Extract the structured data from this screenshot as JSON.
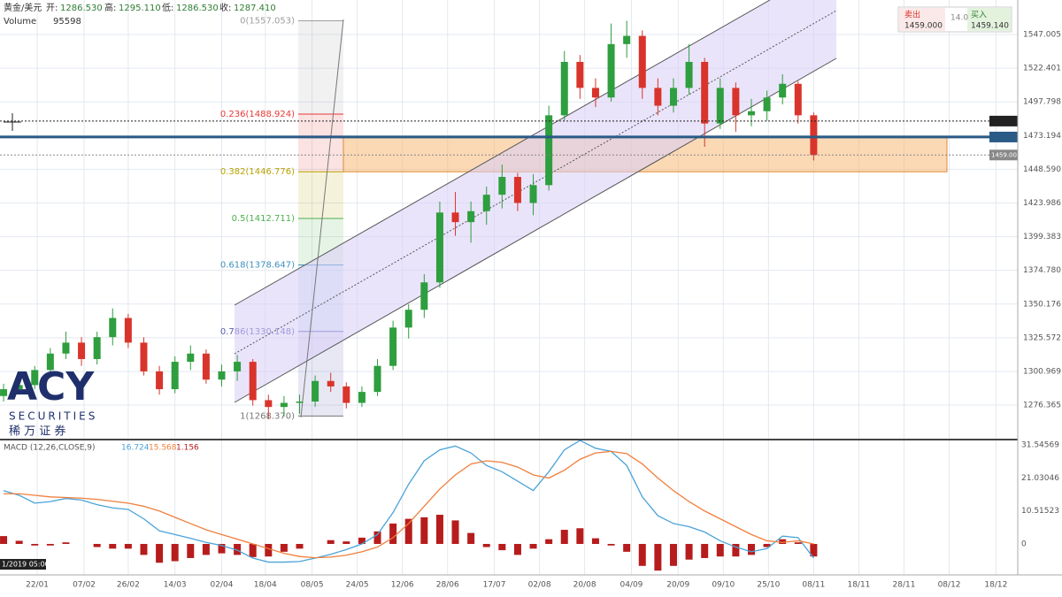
{
  "header": {
    "symbol": "黄金/美元",
    "open_label": "开:",
    "open": "1286.530",
    "high_label": "高:",
    "high": "1295.110",
    "low_label": "低:",
    "low": "1286.530",
    "close_label": "收:",
    "close": "1287.410",
    "volume_label": "Volume",
    "volume": "95598",
    "sell_label": "卖出",
    "sell": "1459.000",
    "spread": "14.0",
    "buy_label": "买入",
    "buy": "1459.140",
    "timestamp": "1/2019  05:00",
    "logo": "ACY",
    "logo_sub": "SECURITIES",
    "logo_cn": "稀 万 证 券"
  },
  "chart_data": [
    {
      "type": "candlestick",
      "up_color": "#2e9e3e",
      "down_color": "#d9342b",
      "x": [
        0,
        1,
        2,
        3,
        4,
        5,
        6,
        7,
        8,
        9,
        10,
        11,
        12,
        13,
        14,
        15,
        16,
        17,
        18,
        19,
        20,
        21,
        22,
        23,
        24,
        25,
        26,
        27,
        28,
        29,
        30,
        31,
        32,
        33,
        34,
        35,
        36,
        37,
        38,
        39,
        40,
        41,
        42,
        43,
        44,
        45,
        46,
        47,
        48,
        49,
        50,
        51,
        52
      ],
      "open": [
        1283,
        1288,
        1291,
        1302,
        1314,
        1322,
        1310,
        1326,
        1340,
        1322,
        1301,
        1288,
        1308,
        1314,
        1295,
        1301,
        1308,
        1280,
        1275,
        1278,
        1279,
        1294,
        1290,
        1278,
        1286,
        1305,
        1333,
        1346,
        1366,
        1417,
        1410,
        1418,
        1430,
        1443,
        1424,
        1437,
        1488,
        1527,
        1508,
        1501,
        1540,
        1546,
        1508,
        1495,
        1508,
        1527,
        1482,
        1508,
        1488,
        1491,
        1501,
        1511,
        1488
      ],
      "high": [
        1292,
        1296,
        1305,
        1318,
        1330,
        1326,
        1330,
        1347,
        1343,
        1326,
        1305,
        1312,
        1320,
        1317,
        1306,
        1313,
        1310,
        1284,
        1283,
        1284,
        1298,
        1300,
        1293,
        1290,
        1310,
        1338,
        1350,
        1372,
        1425,
        1432,
        1425,
        1436,
        1452,
        1446,
        1445,
        1495,
        1535,
        1532,
        1515,
        1555,
        1557,
        1550,
        1515,
        1515,
        1540,
        1530,
        1515,
        1512,
        1500,
        1506,
        1518,
        1513,
        1490
      ],
      "low": [
        1279,
        1284,
        1288,
        1298,
        1310,
        1305,
        1306,
        1320,
        1318,
        1298,
        1284,
        1285,
        1302,
        1292,
        1290,
        1294,
        1276,
        1266,
        1268,
        1270,
        1275,
        1286,
        1274,
        1275,
        1283,
        1302,
        1325,
        1340,
        1362,
        1400,
        1395,
        1408,
        1420,
        1418,
        1415,
        1433,
        1484,
        1500,
        1494,
        1498,
        1530,
        1500,
        1488,
        1490,
        1503,
        1465,
        1478,
        1476,
        1480,
        1484,
        1496,
        1482,
        1455
      ],
      "close": [
        1288,
        1291,
        1302,
        1314,
        1322,
        1310,
        1326,
        1340,
        1322,
        1301,
        1288,
        1308,
        1314,
        1295,
        1301,
        1308,
        1280,
        1275,
        1278,
        1279,
        1294,
        1290,
        1278,
        1286,
        1305,
        1333,
        1346,
        1366,
        1417,
        1410,
        1418,
        1430,
        1443,
        1424,
        1437,
        1488,
        1527,
        1508,
        1501,
        1540,
        1546,
        1508,
        1495,
        1508,
        1527,
        1482,
        1508,
        1488,
        1491,
        1501,
        1511,
        1488,
        1459
      ],
      "xlim": [
        -0.23,
        65.1
      ],
      "xticks": [
        {
          "value": 2.16,
          "label": "22/01"
        },
        {
          "value": 5.17,
          "label": "07/02"
        },
        {
          "value": 8.0,
          "label": "26/02"
        },
        {
          "value": 11.0,
          "label": "14/03"
        },
        {
          "value": 14.0,
          "label": "02/04"
        },
        {
          "value": 16.8,
          "label": "18/04"
        },
        {
          "value": 19.8,
          "label": "08/05"
        },
        {
          "value": 22.7,
          "label": "24/05"
        },
        {
          "value": 25.6,
          "label": "12/06"
        },
        {
          "value": 28.5,
          "label": "28/06"
        },
        {
          "value": 31.5,
          "label": "17/07"
        },
        {
          "value": 34.4,
          "label": "02/08"
        },
        {
          "value": 37.3,
          "label": "20/08"
        },
        {
          "value": 40.3,
          "label": "04/09"
        },
        {
          "value": 43.3,
          "label": "20/09"
        },
        {
          "value": 46.2,
          "label": "09/10"
        },
        {
          "value": 49.1,
          "label": "25/10"
        },
        {
          "value": 52.0,
          "label": "08/11"
        },
        {
          "value": 54.9,
          "label": "18/11"
        },
        {
          "value": 57.8,
          "label": "28/11"
        },
        {
          "value": 60.7,
          "label": "08/12"
        },
        {
          "value": 63.7,
          "label": "18/12"
        }
      ],
      "ylim": [
        1252.5,
        1572.2
      ],
      "yticks": [
        1547.005,
        1522.401,
        1497.798,
        1473.194,
        {
          "value": 1448.59,
          "label": "1448.590"
        },
        1423.986,
        1399.383,
        {
          "value": 1374.78,
          "label": "1374.780"
        },
        1350.176,
        1325.572,
        1300.969,
        1276.365
      ],
      "grid": true,
      "fib": [
        {
          "label": "0(1557.053)",
          "value": 1557.053,
          "color": "#9e9e9e"
        },
        {
          "label": "0.236(1488.924)",
          "value": 1488.924,
          "color": "#e53935"
        },
        {
          "label": "0.382(1446.776)",
          "value": 1446.776,
          "color": "#b8a300"
        },
        {
          "label": "0.5(1412.711)",
          "value": 1412.711,
          "color": "#4caf50"
        },
        {
          "label": "0.618(1378.647)",
          "value": 1378.647,
          "color": "#3f8fbf"
        },
        {
          "label": "0.786(1330.148)",
          "value": 1330.148,
          "color": "#5b5bb5"
        },
        {
          "label": "1(1268.370)",
          "value": 1268.37,
          "color": "#757575"
        }
      ],
      "price_markers": [
        {
          "value": 1483.791,
          "color": "#222"
        },
        {
          "value": 1472.146,
          "color": "#2a5a86"
        },
        {
          "value": 1459,
          "label": "1459.000",
          "color": "#888"
        }
      ]
    },
    {
      "type": "macd",
      "title": "MACD (12,26,CLOSE,9)",
      "readouts": [
        16.724,
        15.568,
        1.156
      ],
      "hist_color": "#b71c1c",
      "x": [
        0,
        1,
        2,
        3,
        4,
        5,
        6,
        7,
        8,
        9,
        10,
        11,
        12,
        13,
        14,
        15,
        16,
        17,
        18,
        19,
        20,
        21,
        22,
        23,
        24,
        25,
        26,
        27,
        28,
        29,
        30,
        31,
        32,
        33,
        34,
        35,
        36,
        37,
        38,
        39,
        40,
        41,
        42,
        43,
        44,
        45,
        46,
        47,
        48,
        49,
        50,
        51,
        52
      ],
      "series": [
        {
          "name": "MACD",
          "color": "#4aa3d8",
          "values": [
            17,
            15.5,
            13,
            13.5,
            14.5,
            14,
            12.5,
            11.5,
            11,
            8,
            4.2,
            3,
            1.8,
            0.5,
            -0.5,
            -2,
            -4.5,
            -5.8,
            -5.8,
            -5.6,
            -4.5,
            -3.3,
            -1.8,
            0,
            3,
            10,
            19,
            26.5,
            30,
            31.2,
            29,
            25,
            23,
            20,
            17,
            23,
            30,
            33,
            30.5,
            29.5,
            25,
            15,
            9,
            6.5,
            5.5,
            3.8,
            1,
            -1,
            -2.5,
            -1.5,
            2.5,
            2,
            -4.5
          ]
        },
        {
          "name": "Signal",
          "color": "#f07f3c",
          "values": [
            16,
            16,
            15.5,
            15,
            14.8,
            14.6,
            14.2,
            13.6,
            13,
            12,
            10.5,
            8.5,
            6.5,
            4.5,
            3,
            1.5,
            0,
            -1.5,
            -3,
            -4,
            -4.4,
            -4.2,
            -3.6,
            -2.5,
            -1,
            2,
            6.5,
            12,
            17.5,
            22,
            25.5,
            26.5,
            26,
            24.5,
            22,
            21,
            23.5,
            27,
            29,
            29.5,
            28.8,
            25.5,
            21,
            17,
            13.5,
            10.5,
            8,
            5.5,
            3,
            1,
            0.5,
            1,
            0
          ]
        }
      ],
      "histogram": [
        2.5,
        1,
        -0.5,
        -0.5,
        0.5,
        0,
        -1,
        -1.5,
        -1.5,
        -3.5,
        -6,
        -5.5,
        -4.5,
        -3.5,
        -3,
        -3.5,
        -4.2,
        -4,
        -2.5,
        -1.5,
        0,
        1.2,
        0.8,
        2,
        4,
        6.5,
        8,
        8.5,
        9.3,
        7.5,
        3.5,
        -1,
        -2,
        -3.5,
        -1.5,
        1.5,
        4.5,
        5,
        1.8,
        -0.5,
        -2.5,
        -7,
        -8.5,
        -7,
        -5,
        -4.5,
        -4,
        -4,
        -3.5,
        -1,
        1.5,
        0.5,
        -4
      ],
      "ylim": [
        -9.87,
        33.27
      ],
      "yticks": [
        31.54569,
        21.03046,
        10.51523,
        0
      ]
    }
  ]
}
